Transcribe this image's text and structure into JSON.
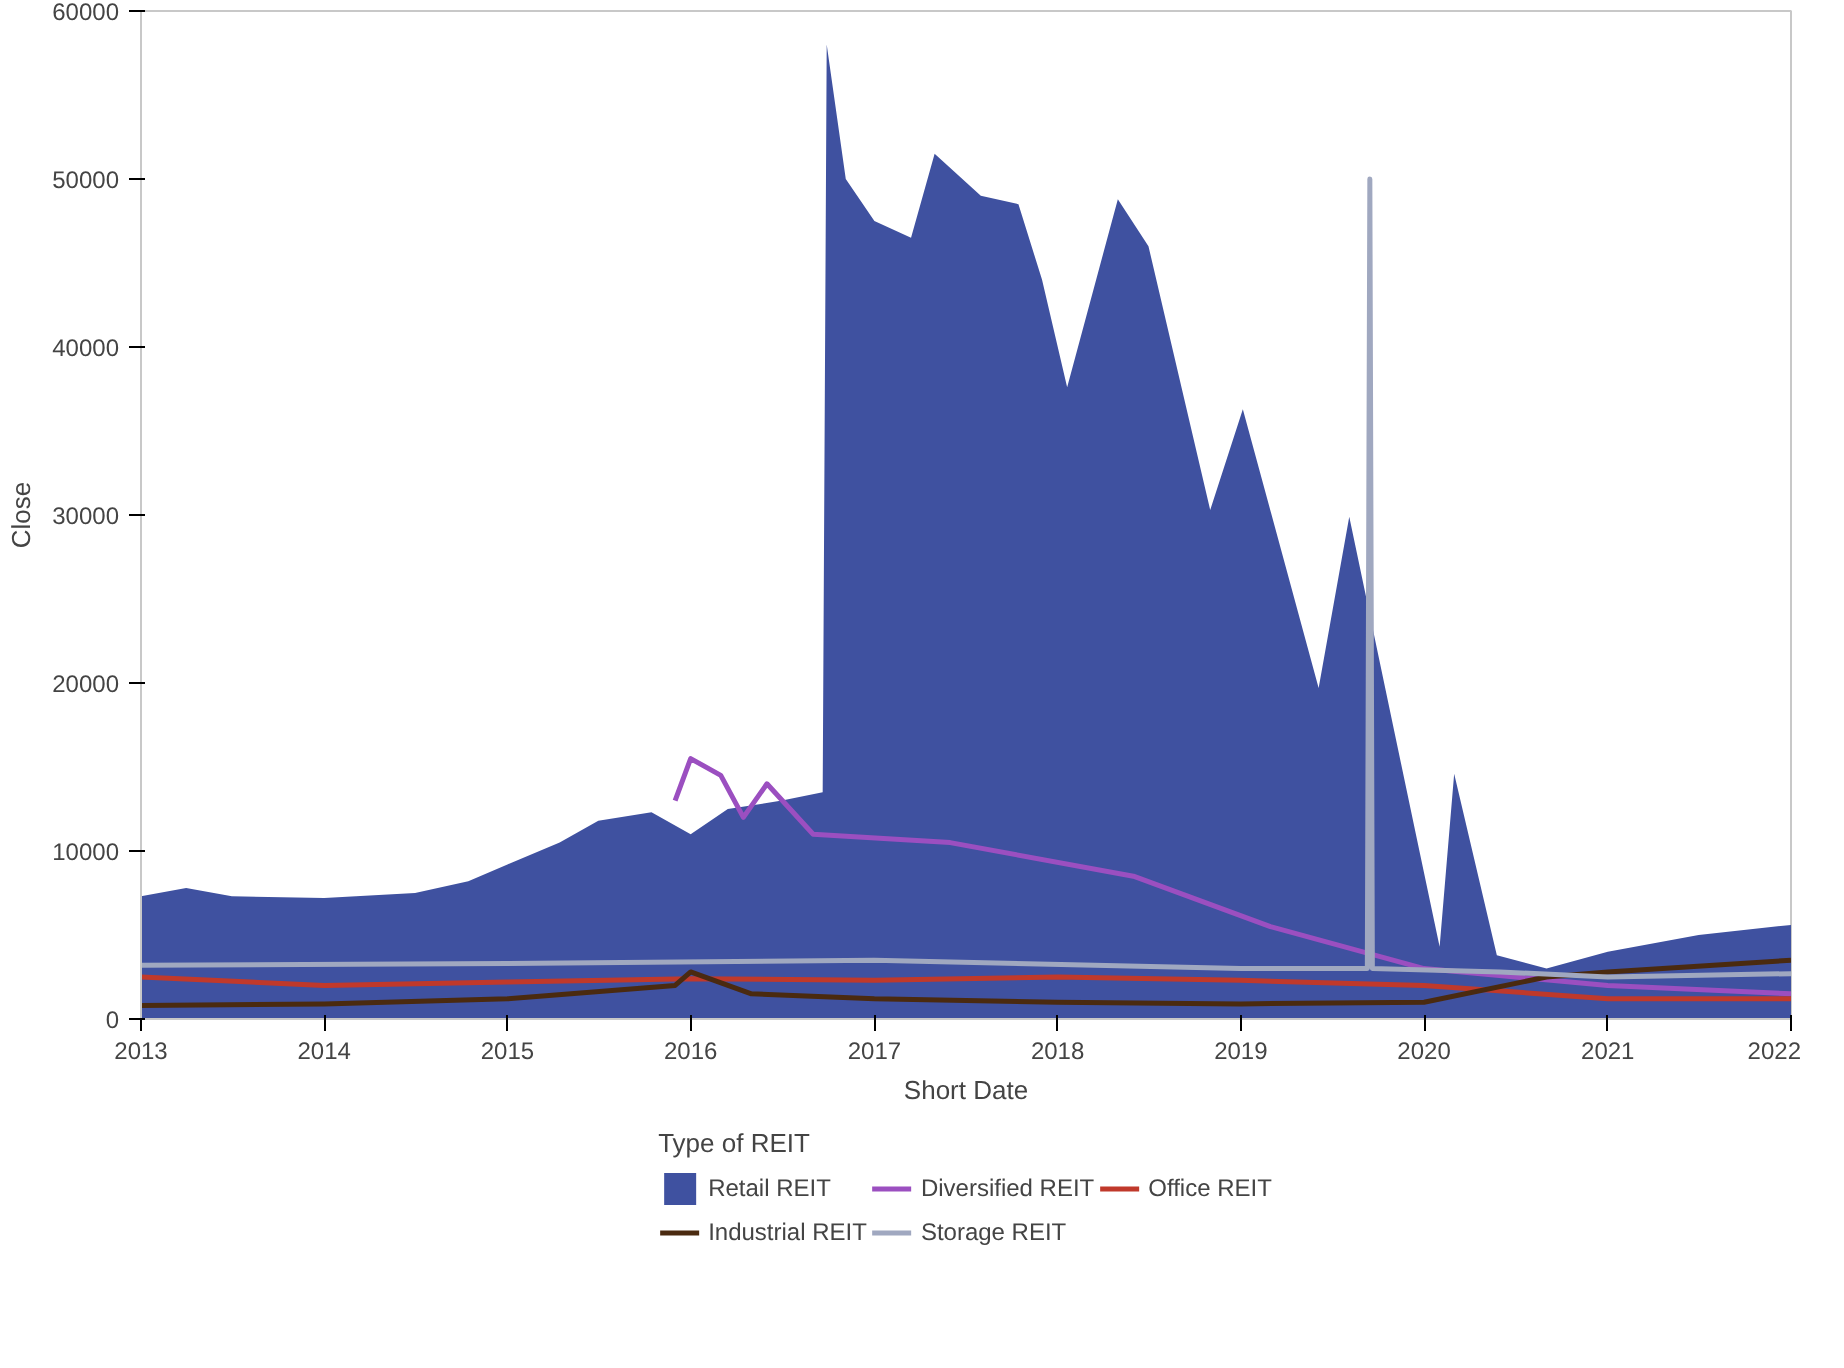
{
  "chart_data": {
    "type": "line",
    "xlabel": "Short Date",
    "ylabel": "Close",
    "legend_title": "Type of REIT",
    "legend": "bottom",
    "grid": false,
    "xlim": [
      "2013-01-01",
      "2022-01-01"
    ],
    "xticks": [
      {
        "value": "2013-01-01",
        "label": "2013"
      },
      {
        "value": "2014-01-01",
        "label": "2014"
      },
      {
        "value": "2015-01-01",
        "label": "2015"
      },
      {
        "value": "2016-01-01",
        "label": "2016"
      },
      {
        "value": "2017-01-01",
        "label": "2017"
      },
      {
        "value": "2018-01-01",
        "label": "2018"
      },
      {
        "value": "2019-01-01",
        "label": "2019"
      },
      {
        "value": "2020-01-01",
        "label": "2020"
      },
      {
        "value": "2021-01-01",
        "label": "2021"
      },
      {
        "value": "2022-01-01",
        "label": "2022"
      }
    ],
    "ylim": [
      0,
      60000
    ],
    "yticks": [
      0,
      10000,
      20000,
      30000,
      40000,
      50000,
      60000
    ],
    "series": [
      {
        "name": "Retail REIT",
        "type": "area",
        "color": "#3f51a0",
        "x": [
          "2013-01-01",
          "2013-04-01",
          "2013-07-01",
          "2014-01-01",
          "2014-07-01",
          "2014-10-15",
          "2015-01-01",
          "2015-04-15",
          "2015-07-01",
          "2015-10-15",
          "2016-01-01",
          "2016-03-15",
          "2016-07-01",
          "2016-09-20",
          "2016-09-28",
          "2016-11-05",
          "2017-01-01",
          "2017-03-15",
          "2017-05-01",
          "2017-08-01",
          "2017-10-15",
          "2017-12-01",
          "2018-01-20",
          "2018-05-01",
          "2018-07-01",
          "2018-11-01",
          "2019-01-05",
          "2019-06-05",
          "2019-08-05",
          "2019-12-15",
          "2020-02-01",
          "2020-03-01",
          "2020-05-25",
          "2020-09-01",
          "2021-01-01",
          "2021-07-01",
          "2022-01-01"
        ],
        "values": [
          7300,
          7800,
          7300,
          7200,
          7500,
          8200,
          9200,
          10500,
          11800,
          12300,
          11000,
          12500,
          13000,
          13500,
          58000,
          50000,
          47500,
          46500,
          51500,
          49000,
          48500,
          44000,
          37600,
          48800,
          46000,
          30300,
          36300,
          19700,
          29900,
          11100,
          4300,
          14600,
          3800,
          3000,
          4000,
          5000,
          5600
        ]
      },
      {
        "name": "Diversified REIT",
        "color": "#9b4fc0",
        "x": [
          "2015-12-01",
          "2016-01-01",
          "2016-03-01",
          "2016-04-15",
          "2016-06-01",
          "2016-09-01",
          "2017-06-01",
          "2018-06-01",
          "2019-03-01",
          "2020-01-01",
          "2021-01-01",
          "2022-01-01"
        ],
        "values": [
          13000,
          15500,
          14500,
          12000,
          14000,
          11000,
          10500,
          8500,
          5500,
          3000,
          2000,
          1500
        ]
      },
      {
        "name": "Office REIT",
        "color": "#c0392b",
        "x": [
          "2013-01-01",
          "2014-01-01",
          "2015-01-01",
          "2016-01-01",
          "2017-01-01",
          "2018-01-01",
          "2019-01-01",
          "2020-01-01",
          "2021-01-01",
          "2022-01-01"
        ],
        "values": [
          2500,
          2000,
          2200,
          2400,
          2300,
          2500,
          2300,
          2000,
          1200,
          1200
        ]
      },
      {
        "name": "Industrial REIT",
        "color": "#4a2a10",
        "x": [
          "2013-01-01",
          "2014-01-01",
          "2015-01-01",
          "2015-12-01",
          "2016-01-01",
          "2016-05-01",
          "2017-01-01",
          "2018-01-01",
          "2019-01-01",
          "2020-01-01",
          "2020-09-01",
          "2021-01-01",
          "2022-01-01"
        ],
        "values": [
          800,
          900,
          1200,
          2000,
          2800,
          1500,
          1200,
          1000,
          900,
          1000,
          2500,
          2800,
          3500
        ]
      },
      {
        "name": "Storage REIT",
        "color": "#a0a8c0",
        "x": [
          "2013-01-01",
          "2015-01-01",
          "2017-01-01",
          "2019-01-01",
          "2019-09-10",
          "2019-09-15",
          "2019-09-20",
          "2020-06-01",
          "2021-01-01",
          "2022-01-01"
        ],
        "values": [
          3200,
          3300,
          3500,
          3000,
          3000,
          50000,
          3000,
          2800,
          2500,
          2700
        ]
      }
    ]
  }
}
